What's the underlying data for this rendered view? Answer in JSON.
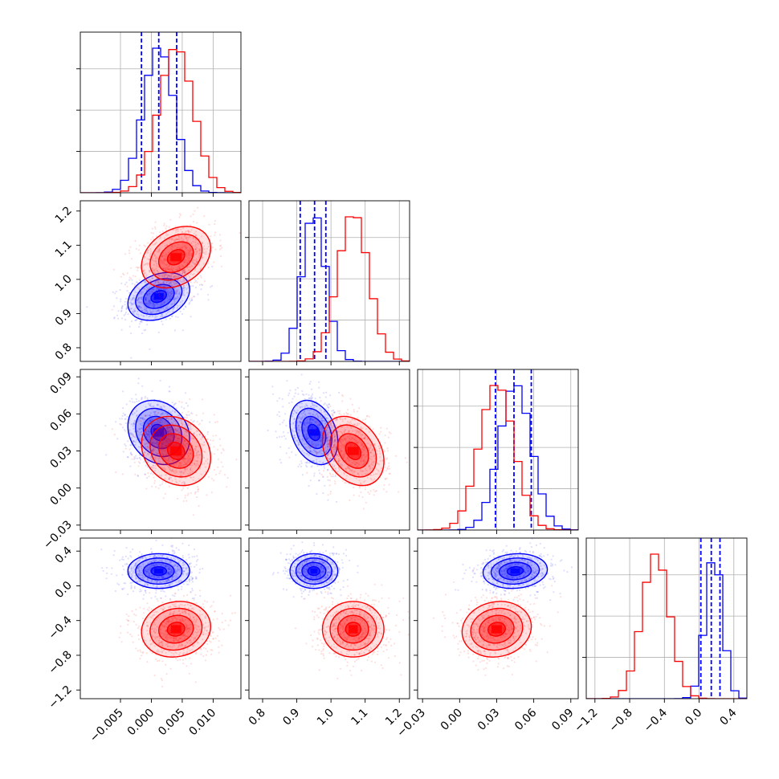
{
  "chart_data": {
    "type": "corner",
    "parameters": 4,
    "colors": {
      "series_a": "#0000ff",
      "series_b": "#ff0000"
    },
    "axes": [
      {
        "range": [
          -0.0115,
          0.0145
        ],
        "ticks": [
          -0.005,
          0.0,
          0.005,
          0.01
        ],
        "tick_labels": [
          "−0.005",
          "0.000",
          "0.005",
          "0.010"
        ]
      },
      {
        "range": [
          0.76,
          1.23
        ],
        "ticks": [
          0.8,
          0.9,
          1.0,
          1.1,
          1.2
        ],
        "tick_labels": [
          "0.8",
          "0.9",
          "1.0",
          "1.1",
          "1.2"
        ]
      },
      {
        "range": [
          -0.034,
          0.096
        ],
        "ticks": [
          -0.03,
          0.0,
          0.03,
          0.06,
          0.09
        ],
        "tick_labels": [
          "−0.03",
          "0.00",
          "0.03",
          "0.06",
          "0.09"
        ]
      },
      {
        "range": [
          -1.3,
          0.55
        ],
        "ticks": [
          -1.2,
          -0.8,
          -0.4,
          0.0,
          0.4
        ],
        "tick_labels": [
          "−1.2",
          "−0.8",
          "−0.4",
          "0.0",
          "0.4"
        ]
      }
    ],
    "series": [
      {
        "color": "#0000ff",
        "mean": [
          0.0012,
          0.95,
          0.045,
          0.17
        ],
        "std": [
          0.0025,
          0.035,
          0.013,
          0.1
        ],
        "corr": [
          [
            1,
            0.3,
            -0.2,
            0.0
          ],
          [
            0.3,
            1,
            -0.3,
            0.0
          ],
          [
            -0.2,
            -0.3,
            1,
            0.1
          ],
          [
            0.0,
            0.0,
            0.1,
            1
          ]
        ],
        "quantiles": [
          [
            -0.0016,
            0.0012,
            0.0041
          ],
          [
            0.91,
            0.952,
            0.985
          ],
          [
            0.029,
            0.044,
            0.058
          ],
          [
            0.02,
            0.14,
            0.24
          ]
        ]
      },
      {
        "color": "#ff0000",
        "mean": [
          0.004,
          1.065,
          0.03,
          -0.5
        ],
        "std": [
          0.0028,
          0.045,
          0.014,
          0.16
        ],
        "corr": [
          [
            1,
            0.3,
            -0.2,
            0.1
          ],
          [
            0.3,
            1,
            -0.3,
            0.0
          ],
          [
            -0.2,
            -0.3,
            1,
            0.1
          ],
          [
            0.1,
            0.0,
            0.1,
            1
          ]
        ],
        "quantiles": []
      }
    ],
    "contour_levels_sigma": [
      0.5,
      1.0,
      1.5,
      2.0
    ],
    "grid": true
  }
}
